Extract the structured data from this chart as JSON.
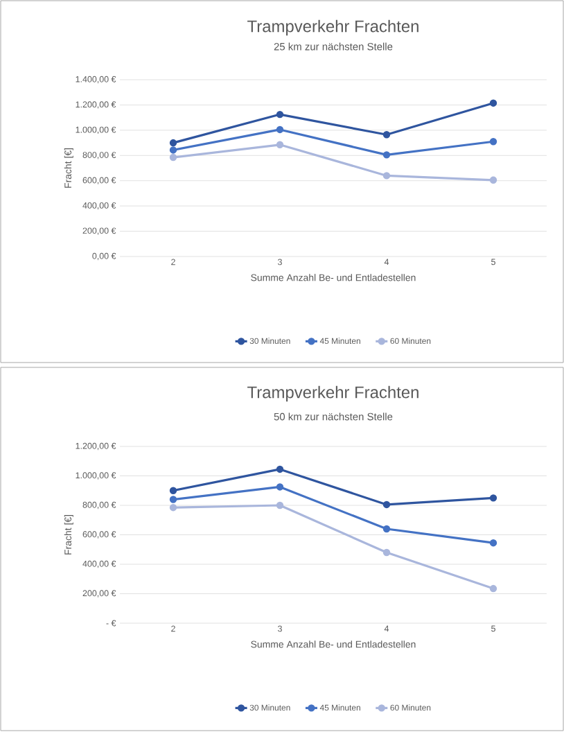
{
  "chart_data": [
    {
      "type": "line",
      "title": "Trampverkehr Frachten",
      "subtitle": "25 km zur nächsten Stelle",
      "xlabel": "Summe Anzahl Be- und Entladestellen",
      "ylabel": "Fracht [€]",
      "categories": [
        "2",
        "3",
        "4",
        "5"
      ],
      "series": [
        {
          "name": "30 Minuten",
          "color": "#2f559f",
          "values": [
            900,
            1125,
            965,
            1215
          ]
        },
        {
          "name": "45 Minuten",
          "color": "#4472c4",
          "values": [
            843,
            1005,
            805,
            910
          ]
        },
        {
          "name": "60 Minuten",
          "color": "#a9b6dc",
          "values": [
            785,
            885,
            640,
            605
          ]
        }
      ],
      "ylim": [
        0,
        1400
      ],
      "yticks": [
        {
          "value": 0,
          "label": "0,00 €"
        },
        {
          "value": 200,
          "label": "200,00 €"
        },
        {
          "value": 400,
          "label": "400,00 €"
        },
        {
          "value": 600,
          "label": "600,00 €"
        },
        {
          "value": 800,
          "label": "800,00 €"
        },
        {
          "value": 1000,
          "label": "1.000,00 €"
        },
        {
          "value": 1200,
          "label": "1.200,00 €"
        },
        {
          "value": 1400,
          "label": "1.400,00 €"
        }
      ],
      "grid": "y",
      "legend": "bottom",
      "marker": "circle",
      "line_style": "solid"
    },
    {
      "type": "line",
      "title": "Trampverkehr Frachten",
      "subtitle": "50 km zur nächsten Stelle",
      "xlabel": "Summe Anzahl Be- und Entladestellen",
      "ylabel": "Fracht [€]",
      "categories": [
        "2",
        "3",
        "4",
        "5"
      ],
      "series": [
        {
          "name": "30 Minuten",
          "color": "#2f559f",
          "values": [
            900,
            1045,
            805,
            850
          ]
        },
        {
          "name": "45 Minuten",
          "color": "#4472c4",
          "values": [
            840,
            925,
            640,
            545
          ]
        },
        {
          "name": "60 Minuten",
          "color": "#a9b6dc",
          "values": [
            785,
            800,
            480,
            235
          ]
        }
      ],
      "ylim": [
        0,
        1200
      ],
      "yticks": [
        {
          "value": 0,
          "label": "-   €"
        },
        {
          "value": 200,
          "label": "200,00 €"
        },
        {
          "value": 400,
          "label": "400,00 €"
        },
        {
          "value": 600,
          "label": "600,00 €"
        },
        {
          "value": 800,
          "label": "800,00 €"
        },
        {
          "value": 1000,
          "label": "1.000,00 €"
        },
        {
          "value": 1200,
          "label": "1.200,00 €"
        }
      ],
      "grid": "y",
      "legend": "bottom",
      "marker": "circle",
      "line_style": "solid"
    }
  ]
}
